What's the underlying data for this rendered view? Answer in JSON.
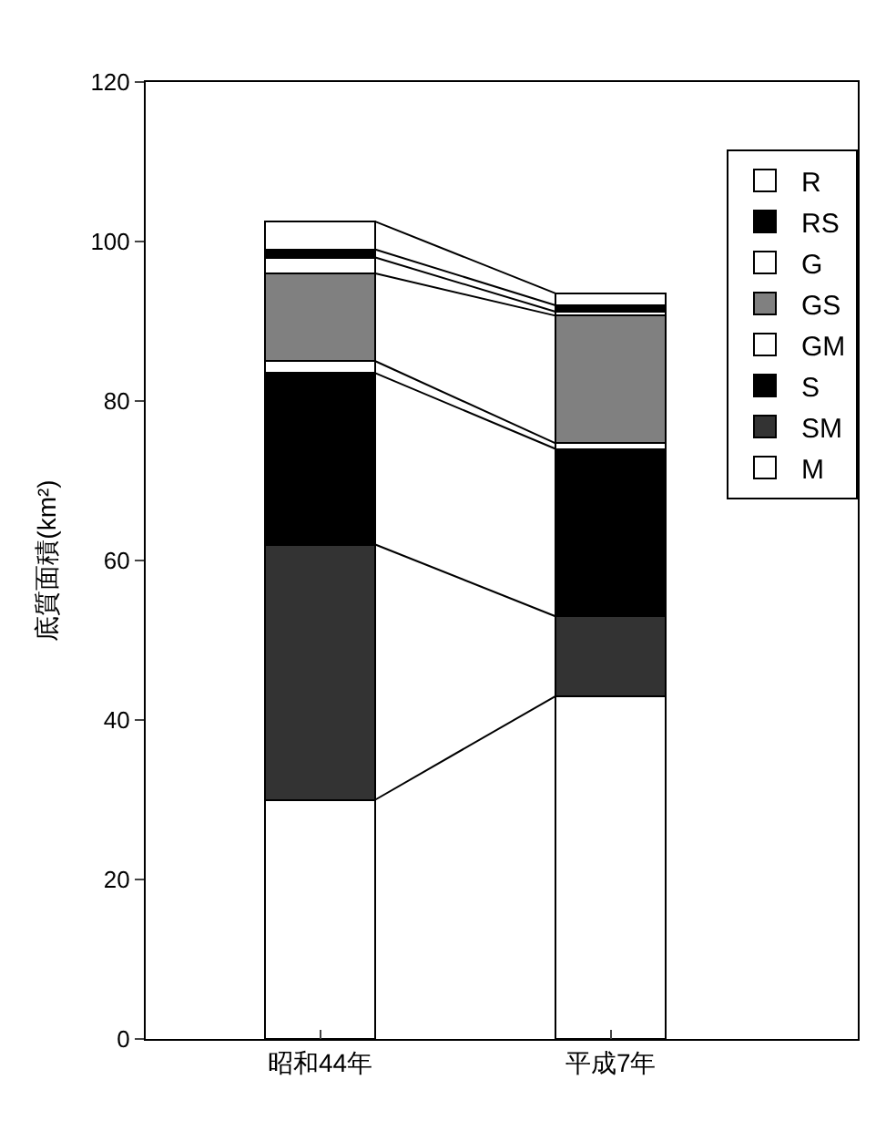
{
  "chart_data": {
    "type": "bar",
    "stacked": true,
    "ylabel": "底質面積(km²)",
    "categories": [
      "昭和44年",
      "平成7年"
    ],
    "series": [
      {
        "name": "M",
        "color": "#ffffff",
        "values": [
          30,
          43
        ]
      },
      {
        "name": "SM",
        "color": "#333333",
        "values": [
          32,
          10
        ]
      },
      {
        "name": "S",
        "color": "#000000",
        "values": [
          21.5,
          21
        ]
      },
      {
        "name": "GM",
        "color": "#ffffff",
        "values": [
          1.5,
          0.7
        ]
      },
      {
        "name": "GS",
        "color": "#808080",
        "values": [
          11,
          16
        ]
      },
      {
        "name": "G",
        "color": "#ffffff",
        "values": [
          2,
          0.5
        ]
      },
      {
        "name": "RS",
        "color": "#000000",
        "values": [
          1,
          0.8
        ]
      },
      {
        "name": "R",
        "color": "#ffffff",
        "values": [
          3.5,
          1.5
        ]
      }
    ],
    "ylim": [
      0,
      120
    ],
    "yticks": [
      0,
      20,
      40,
      60,
      80,
      100,
      120
    ],
    "legend": "top right"
  }
}
